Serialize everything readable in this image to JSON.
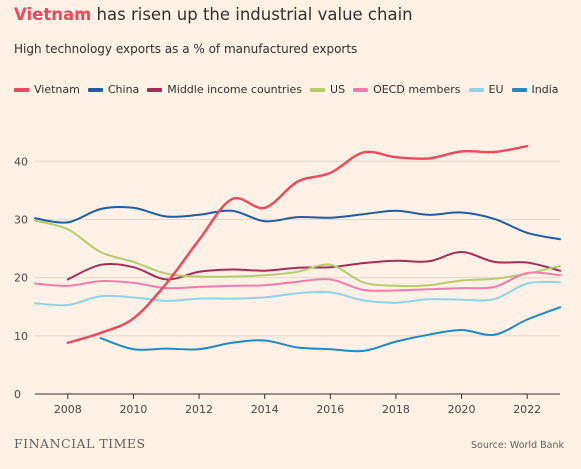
{
  "header": {
    "title_highlight": "Vietnam",
    "title_rest": " has risen up the industrial value chain",
    "subtitle": "High technology exports as a % of manufactured exports"
  },
  "footer": {
    "logo": "FINANCIAL TIMES",
    "source": "Source: World Bank"
  },
  "chart_data": {
    "type": "line",
    "title": "Vietnam has risen up the industrial value chain",
    "subtitle": "High technology exports as a % of manufactured exports",
    "xlabel": "",
    "ylabel": "",
    "xlim": [
      2007,
      2023
    ],
    "ylim": [
      0,
      44
    ],
    "xticks": [
      2008,
      2010,
      2012,
      2014,
      2016,
      2018,
      2020,
      2022
    ],
    "yticks": [
      0,
      10,
      20,
      30,
      40
    ],
    "grid": "horizontal",
    "legend_position": "top",
    "series": [
      {
        "name": "Vietnam",
        "color": "#f0475b",
        "width": 2.4,
        "x": [
          2008,
          2009,
          2010,
          2011,
          2012,
          2013,
          2014,
          2015,
          2016,
          2017,
          2018,
          2019,
          2020,
          2021,
          2022
        ],
        "y": [
          8.8,
          10.5,
          13.0,
          19.0,
          26.5,
          33.5,
          32.0,
          36.5,
          38.0,
          41.5,
          40.7,
          40.5,
          41.7,
          41.6,
          42.6
        ]
      },
      {
        "name": "China",
        "color": "#215ba0",
        "width": 2.0,
        "x": [
          2007,
          2008,
          2009,
          2010,
          2011,
          2012,
          2013,
          2014,
          2015,
          2016,
          2017,
          2018,
          2019,
          2020,
          2021,
          2022,
          2023
        ],
        "y": [
          30.2,
          29.5,
          31.8,
          32.0,
          30.5,
          30.8,
          31.5,
          29.7,
          30.4,
          30.3,
          30.9,
          31.5,
          30.8,
          31.2,
          30.1,
          27.7,
          26.6
        ]
      },
      {
        "name": "Middle income countries",
        "color": "#a52d5a",
        "width": 2.0,
        "x": [
          2008,
          2009,
          2010,
          2011,
          2012,
          2013,
          2014,
          2015,
          2016,
          2017,
          2018,
          2019,
          2020,
          2021,
          2022,
          2023
        ],
        "y": [
          19.7,
          22.2,
          21.8,
          19.7,
          21.0,
          21.4,
          21.2,
          21.7,
          21.8,
          22.5,
          22.9,
          22.8,
          24.4,
          22.7,
          22.6,
          21.2
        ]
      },
      {
        "name": "US",
        "color": "#b4cc6c",
        "width": 2.0,
        "x": [
          2007,
          2008,
          2009,
          2010,
          2011,
          2012,
          2013,
          2014,
          2015,
          2016,
          2017,
          2018,
          2019,
          2020,
          2021,
          2022,
          2023
        ],
        "y": [
          29.8,
          28.3,
          24.4,
          22.7,
          20.7,
          20.2,
          20.2,
          20.4,
          21.0,
          22.2,
          19.2,
          18.6,
          18.7,
          19.5,
          19.8,
          20.7,
          22.0
        ]
      },
      {
        "name": "OECD members",
        "color": "#f77aae",
        "width": 2.0,
        "x": [
          2007,
          2008,
          2009,
          2010,
          2011,
          2012,
          2013,
          2014,
          2015,
          2016,
          2017,
          2018,
          2019,
          2020,
          2021,
          2022,
          2023
        ],
        "y": [
          19.0,
          18.6,
          19.4,
          19.1,
          18.2,
          18.4,
          18.6,
          18.7,
          19.3,
          19.7,
          17.9,
          17.8,
          18.0,
          18.2,
          18.4,
          20.8,
          20.4
        ]
      },
      {
        "name": "EU",
        "color": "#8fd3ea",
        "width": 2.0,
        "x": [
          2007,
          2008,
          2009,
          2010,
          2011,
          2012,
          2013,
          2014,
          2015,
          2016,
          2017,
          2018,
          2019,
          2020,
          2021,
          2022,
          2023
        ],
        "y": [
          15.6,
          15.3,
          16.8,
          16.6,
          16.0,
          16.4,
          16.4,
          16.6,
          17.3,
          17.5,
          16.1,
          15.7,
          16.3,
          16.2,
          16.3,
          19.0,
          19.2
        ]
      },
      {
        "name": "India",
        "color": "#1f8ac9",
        "width": 2.0,
        "x": [
          2009,
          2010,
          2011,
          2012,
          2013,
          2014,
          2015,
          2016,
          2017,
          2018,
          2019,
          2020,
          2021,
          2022,
          2023
        ],
        "y": [
          9.6,
          7.7,
          7.8,
          7.7,
          8.8,
          9.2,
          8.0,
          7.7,
          7.4,
          9.0,
          10.2,
          11.0,
          10.2,
          12.8,
          14.9
        ]
      }
    ]
  }
}
